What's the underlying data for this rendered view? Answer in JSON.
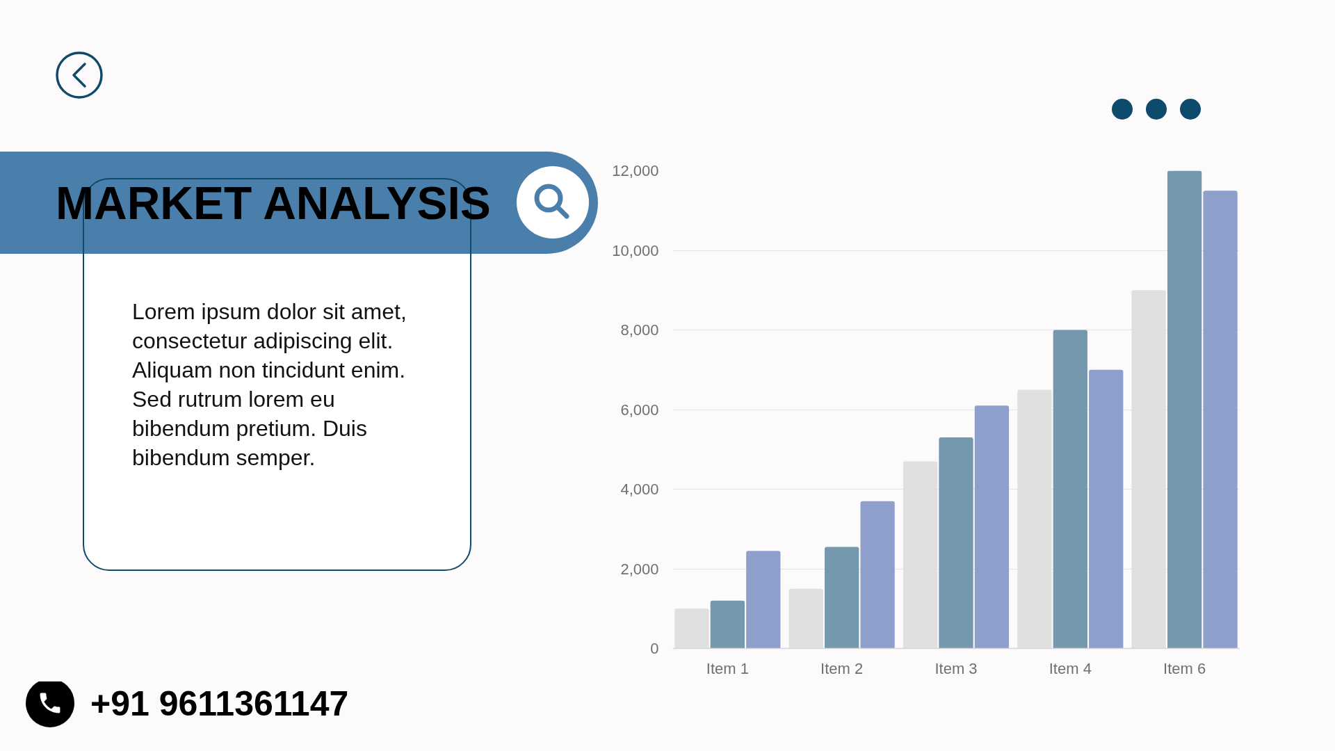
{
  "chart_data": {
    "type": "bar",
    "title": "MARKET ANALYSIS",
    "categories": [
      "Item 1",
      "Item 2",
      "Item 3",
      "Item 4",
      "Item 6"
    ],
    "series": [
      {
        "color": "#e0e0e0",
        "values": [
          1000,
          1500,
          4700,
          6500,
          9000
        ]
      },
      {
        "color": "#7499ae",
        "values": [
          1200,
          2550,
          5300,
          8000,
          12000
        ]
      },
      {
        "color": "#8f9fcb",
        "values": [
          2450,
          3700,
          6100,
          7000,
          11500
        ]
      }
    ],
    "ylim": [
      0,
      12000
    ],
    "yticks": [
      0,
      {
        "value": 2000,
        "label": "2,000"
      },
      {
        "value": 4000,
        "label": "4,000"
      },
      {
        "value": 6000,
        "label": "6,000"
      },
      {
        "value": 8000,
        "label": "8,000"
      },
      {
        "value": 10000,
        "label": "10,000"
      },
      {
        "value": 12000,
        "label": "12,000"
      }
    ],
    "grid": "y",
    "annotations": [
      "Lorem ipsum dolor sit amet,\nconsectetur adipiscing elit.\nAliquam non tincidunt enim.\nSed rutrum lorem eu\nbibendum pretium. Duis\nbibendum semper.",
      "+91 9611361147"
    ]
  }
}
